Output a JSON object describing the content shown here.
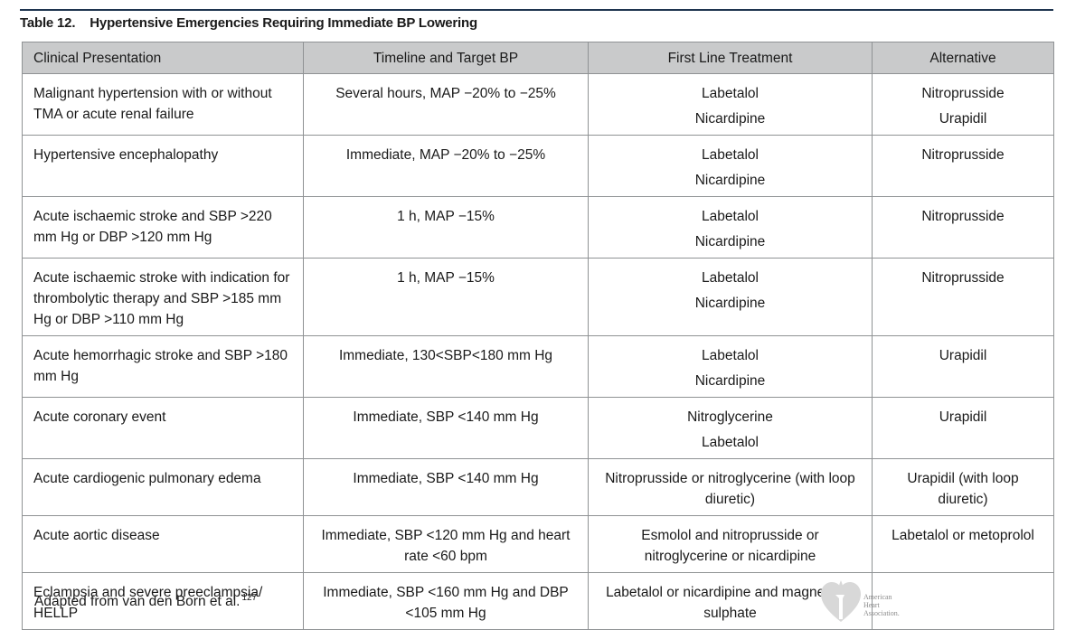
{
  "table": {
    "number": "Table 12.",
    "title": "Hypertensive Emergencies Requiring Immediate BP Lowering",
    "headers": [
      "Clinical Presentation",
      "Timeline and Target BP",
      "First Line Treatment",
      "Alternative"
    ],
    "rows": [
      {
        "presentation": "Malignant hypertension with or without TMA or acute renal failure",
        "timeline": "Several hours, MAP −20% to −25%",
        "first_line": [
          "Labetalol",
          "Nicardipine"
        ],
        "alternative": [
          "Nitroprusside",
          "Urapidil"
        ]
      },
      {
        "presentation": "Hypertensive encephalopathy",
        "timeline": "Immediate, MAP −20% to −25%",
        "first_line": [
          "Labetalol",
          "Nicardipine"
        ],
        "alternative": [
          "Nitroprusside"
        ]
      },
      {
        "presentation": "Acute ischaemic stroke and SBP >220 mm Hg or DBP >120 mm Hg",
        "timeline": "1 h, MAP −15%",
        "first_line": [
          "Labetalol",
          "Nicardipine"
        ],
        "alternative": [
          "Nitroprusside"
        ]
      },
      {
        "presentation": "Acute ischaemic stroke with indication for thrombolytic therapy and SBP >185 mm Hg or DBP >110 mm Hg",
        "timeline": "1 h, MAP −15%",
        "first_line": [
          "Labetalol",
          "Nicardipine"
        ],
        "alternative": [
          "Nitroprusside"
        ]
      },
      {
        "presentation": "Acute hemorrhagic stroke and SBP >180 mm Hg",
        "timeline": "Immediate, 130<SBP<180 mm Hg",
        "first_line": [
          "Labetalol",
          "Nicardipine"
        ],
        "alternative": [
          "Urapidil"
        ]
      },
      {
        "presentation": "Acute coronary event",
        "timeline": "Immediate, SBP <140 mm Hg",
        "first_line": [
          "Nitroglycerine",
          "Labetalol"
        ],
        "alternative": [
          "Urapidil"
        ]
      },
      {
        "presentation": "Acute cardiogenic pulmonary edema",
        "timeline": "Immediate, SBP <140 mm Hg",
        "first_line": [
          "Nitroprusside or nitroglycerine (with loop diuretic)"
        ],
        "alternative": [
          "Urapidil (with loop diuretic)"
        ]
      },
      {
        "presentation": "Acute aortic disease",
        "timeline": "Immediate, SBP <120 mm Hg and heart rate <60 bpm",
        "first_line": [
          "Esmolol and nitroprusside or nitroglycerine or nicardipine"
        ],
        "alternative": [
          "Labetalol or metoprolol"
        ]
      },
      {
        "presentation": "Eclampsia and severe preeclampsia/ HELLP",
        "timeline": "Immediate, SBP <160 mm Hg and DBP <105 mm Hg",
        "first_line": [
          "Labetalol or nicardipine and magnesium sulphate"
        ],
        "alternative": []
      }
    ]
  },
  "footnote": {
    "text": "Adapted from van den Born et al.",
    "ref": "127"
  },
  "logo": {
    "line1": "American",
    "line2": "Heart",
    "line3": "Association.",
    "icon": "heart-torch-logo-icon"
  },
  "colors": {
    "header_bg": "#c9cacb",
    "rule": "#1f3550",
    "grid": "#8f9294"
  }
}
